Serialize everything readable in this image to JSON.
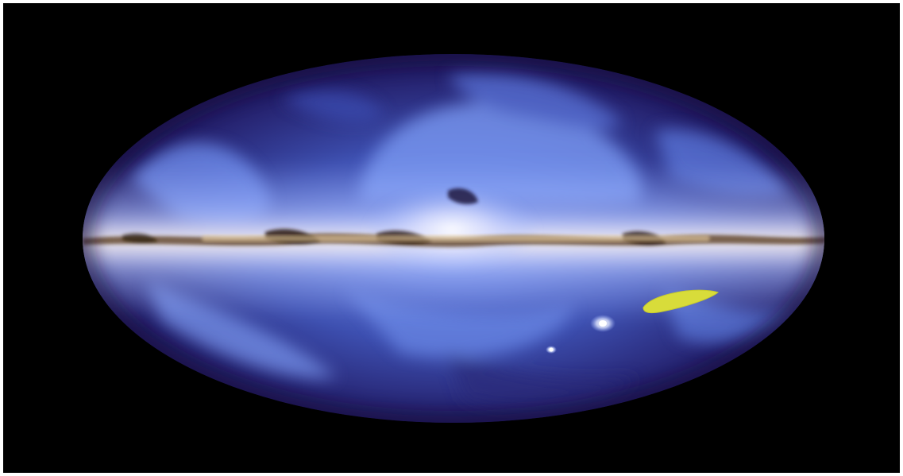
{
  "image": {
    "kind": "photo",
    "subject": "all-sky-map"
  },
  "colors": {
    "background": "#000000",
    "frame": "#ffffff",
    "sky_dark": "#1a1550",
    "sky_mid": "#4a66c8",
    "sky_glow": "#9fb6ff",
    "plane_core": "#fff2dc",
    "dust_lane": "#5a3b1a",
    "highlight_region": "#d8dc3a",
    "satellite_galaxy": "#eef2ff"
  },
  "icons": {
    "highlight": "highlight-region-shape",
    "large_cloud": "large-magellanic-cloud-shape",
    "small_cloud": "small-magellanic-cloud-shape"
  }
}
